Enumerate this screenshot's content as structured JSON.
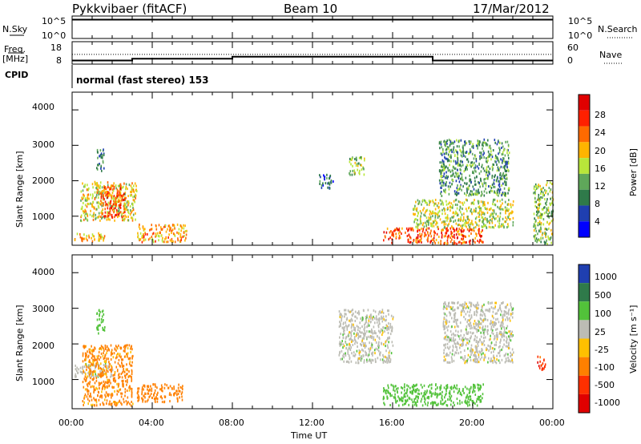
{
  "header": {
    "station": "Pykkvibaer (fitACF)",
    "beam": "Beam 10",
    "date": "17/Mar/2012"
  },
  "nsky_panel": {
    "left_label": "N.Sky",
    "left_ticks": [
      "10^5",
      "10^0"
    ],
    "right_label": "N.Search",
    "right_ticks": [
      "10^5",
      "10^0"
    ]
  },
  "freq_panel": {
    "left_label_top": "Freq.",
    "left_label_bottom": "[MHz]",
    "left_ticks": [
      "18",
      "8"
    ],
    "right_label": "Nave",
    "right_ticks": [
      "60",
      "0"
    ]
  },
  "cpid": {
    "label": "CPID",
    "value": "normal (fast stereo) 153"
  },
  "power_panel": {
    "ylabel": "Slant Range [km]",
    "yticks": [
      "4000",
      "3000",
      "2000",
      "1000"
    ],
    "cbar_label": "Power [dB]",
    "cbar_ticks": [
      "28",
      "24",
      "20",
      "16",
      "12",
      "8",
      "4"
    ]
  },
  "velocity_panel": {
    "ylabel": "Slant Range [km]",
    "yticks": [
      "4000",
      "3000",
      "2000",
      "1000"
    ],
    "cbar_label": "Velocity [m s⁻¹]",
    "cbar_ticks": [
      "1000",
      "500",
      "100",
      "25",
      "-25",
      "-100",
      "-500",
      "-1000"
    ]
  },
  "xaxis": {
    "label": "Time UT",
    "ticks": [
      "00:00",
      "04:00",
      "08:00",
      "12:00",
      "16:00",
      "20:00",
      "00:00"
    ]
  },
  "colors": {
    "power_scale": [
      "#0000ff",
      "#1f3fb0",
      "#2f7a4a",
      "#5fa75a",
      "#b8e63a",
      "#ffb400",
      "#ff6a00",
      "#ff2000",
      "#e00000"
    ],
    "velocity_scale": [
      "#1f3fb0",
      "#2f7a4a",
      "#52c23a",
      "#bcbcb4",
      "#ffc000",
      "#ff8000",
      "#ff3000",
      "#e00000"
    ]
  },
  "chart_data": {
    "type": "heatmap",
    "title": "Pykkvibaer (fitACF) Beam 10 17/Mar/2012",
    "xlabel": "Time UT",
    "ylabel": "Slant Range [km]",
    "xlim_hours": [
      0,
      24
    ],
    "ylim_km": [
      180,
      4500
    ],
    "nsky": {
      "approx_value_log10": 4.2,
      "x_hours": [
        0,
        24
      ]
    },
    "freq_mhz": {
      "x_hours": [
        0,
        2.4,
        3.0,
        8.0,
        18.0,
        24
      ],
      "values": [
        9.6,
        9.6,
        10.4,
        11.3,
        9.6,
        9.6
      ]
    },
    "nave": {
      "approx": 26,
      "x_hours": [
        0,
        24
      ]
    },
    "power_regions_db": [
      {
        "t": [
          0.1,
          1.6
        ],
        "r": [
          300,
          550
        ],
        "level": 20
      },
      {
        "t": [
          0.4,
          3.2
        ],
        "r": [
          900,
          2000
        ],
        "level": 18
      },
      {
        "t": [
          1.4,
          2.6
        ],
        "r": [
          1000,
          1900
        ],
        "level": 26
      },
      {
        "t": [
          3.2,
          5.7
        ],
        "r": [
          300,
          800
        ],
        "level": 22
      },
      {
        "t": [
          1.2,
          1.6
        ],
        "r": [
          2300,
          3000
        ],
        "level": 8
      },
      {
        "t": [
          12.3,
          13.0
        ],
        "r": [
          1800,
          2200
        ],
        "level": 6
      },
      {
        "t": [
          13.8,
          14.6
        ],
        "r": [
          2200,
          2700
        ],
        "level": 14
      },
      {
        "t": [
          15.5,
          20.5
        ],
        "r": [
          250,
          700
        ],
        "level": 26
      },
      {
        "t": [
          17.0,
          22.0
        ],
        "r": [
          700,
          1500
        ],
        "level": 16
      },
      {
        "t": [
          18.3,
          21.8
        ],
        "r": [
          1600,
          3200
        ],
        "level": 10
      },
      {
        "t": [
          23.0,
          24.0
        ],
        "r": [
          250,
          2000
        ],
        "level": 14
      }
    ],
    "velocity_regions_ms": [
      {
        "t": [
          0.1,
          2.0
        ],
        "r": [
          1100,
          1500
        ],
        "level": 0
      },
      {
        "t": [
          0.5,
          3.0
        ],
        "r": [
          300,
          2000
        ],
        "level": -150
      },
      {
        "t": [
          3.2,
          5.5
        ],
        "r": [
          400,
          900
        ],
        "level": -200
      },
      {
        "t": [
          1.2,
          1.6
        ],
        "r": [
          2300,
          3000
        ],
        "level": 60
      },
      {
        "t": [
          13.3,
          16.0
        ],
        "r": [
          1500,
          3000
        ],
        "level": 0
      },
      {
        "t": [
          15.5,
          20.5
        ],
        "r": [
          300,
          900
        ],
        "level": 60
      },
      {
        "t": [
          18.5,
          22.0
        ],
        "r": [
          1500,
          3200
        ],
        "level": 0
      },
      {
        "t": [
          23.2,
          23.6
        ],
        "r": [
          1300,
          1700
        ],
        "level": -800
      }
    ]
  }
}
